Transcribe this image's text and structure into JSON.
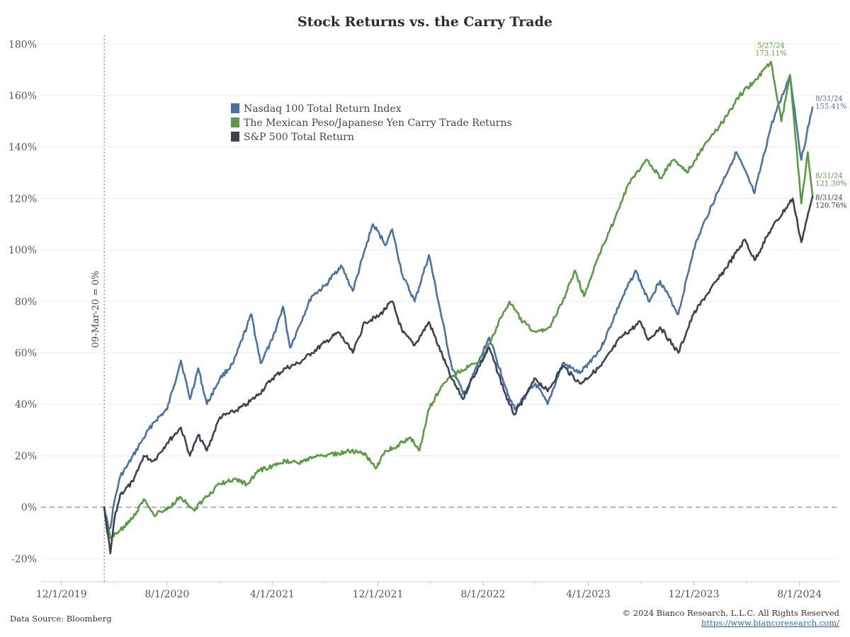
{
  "colors": {
    "nasdaq": "#4a72a3",
    "carry": "#5a9a44",
    "sp500": "#3c4250",
    "grid": "#ebebeb",
    "zero_line": "#9a9a9a",
    "link": "#2a6fb0"
  },
  "footer": {
    "source": "Data Source: Bloomberg",
    "copyright": "© 2024 Bianco Research, L.L.C. All Rights Reserved",
    "url": "https://www.biancoresearch.com/"
  },
  "reference_line": {
    "label": "09-Mar-20 = 0%"
  },
  "chart_data": {
    "type": "line",
    "title": "Stock Returns vs. the Carry Trade",
    "xlabel": "",
    "ylabel": "",
    "x_ticks": [
      "12/1/2019",
      "8/1/2020",
      "4/1/2021",
      "12/1/2021",
      "8/1/2022",
      "4/1/2023",
      "12/1/2023",
      "8/1/2024"
    ],
    "y_ticks": [
      "-20%",
      "0%",
      "20%",
      "40%",
      "60%",
      "80%",
      "100%",
      "120%",
      "140%",
      "160%",
      "180%"
    ],
    "xlim": [
      "2019-10-15",
      "2024-11-01"
    ],
    "ylim": [
      -29,
      182
    ],
    "grid": true,
    "legend_position": "upper-left-center",
    "series": [
      {
        "name": "Nasdaq 100 Total Return Index",
        "color_key": "nasdaq",
        "points": [
          [
            "2020-03-09",
            0
          ],
          [
            "2020-03-16",
            -10
          ],
          [
            "2020-03-23",
            -8
          ],
          [
            "2020-04-01",
            2
          ],
          [
            "2020-04-15",
            12
          ],
          [
            "2020-05-01",
            16
          ],
          [
            "2020-06-01",
            25
          ],
          [
            "2020-07-01",
            33
          ],
          [
            "2020-08-01",
            38
          ],
          [
            "2020-09-02",
            57
          ],
          [
            "2020-09-23",
            42
          ],
          [
            "2020-10-12",
            54
          ],
          [
            "2020-11-01",
            40
          ],
          [
            "2020-12-01",
            50
          ],
          [
            "2021-01-01",
            56
          ],
          [
            "2021-02-12",
            75
          ],
          [
            "2021-03-05",
            56
          ],
          [
            "2021-04-01",
            65
          ],
          [
            "2021-04-26",
            78
          ],
          [
            "2021-05-12",
            62
          ],
          [
            "2021-06-01",
            70
          ],
          [
            "2021-07-01",
            82
          ],
          [
            "2021-08-01",
            86
          ],
          [
            "2021-09-07",
            94
          ],
          [
            "2021-10-04",
            84
          ],
          [
            "2021-11-19",
            110
          ],
          [
            "2021-12-20",
            102
          ],
          [
            "2022-01-03",
            108
          ],
          [
            "2022-01-27",
            90
          ],
          [
            "2022-02-24",
            80
          ],
          [
            "2022-03-29",
            98
          ],
          [
            "2022-05-20",
            55
          ],
          [
            "2022-06-16",
            44
          ],
          [
            "2022-07-01",
            48
          ],
          [
            "2022-08-15",
            66
          ],
          [
            "2022-09-30",
            43
          ],
          [
            "2022-10-13",
            38
          ],
          [
            "2022-11-30",
            48
          ],
          [
            "2022-12-28",
            40
          ],
          [
            "2023-02-01",
            56
          ],
          [
            "2023-03-13",
            52
          ],
          [
            "2023-05-01",
            62
          ],
          [
            "2023-06-15",
            80
          ],
          [
            "2023-07-19",
            92
          ],
          [
            "2023-08-18",
            80
          ],
          [
            "2023-09-14",
            88
          ],
          [
            "2023-10-26",
            75
          ],
          [
            "2023-11-30",
            100
          ],
          [
            "2023-12-28",
            112
          ],
          [
            "2024-02-01",
            125
          ],
          [
            "2024-03-08",
            138
          ],
          [
            "2024-04-19",
            122
          ],
          [
            "2024-05-27",
            148
          ],
          [
            "2024-07-10",
            168
          ],
          [
            "2024-08-05",
            135
          ],
          [
            "2024-08-31",
            155.41
          ]
        ]
      },
      {
        "name": "The Mexican Peso/Japanese Yen Carry Trade Returns",
        "color_key": "carry",
        "points": [
          [
            "2020-03-09",
            0
          ],
          [
            "2020-03-23",
            -12
          ],
          [
            "2020-04-15",
            -9
          ],
          [
            "2020-05-15",
            -4
          ],
          [
            "2020-06-10",
            3
          ],
          [
            "2020-07-01",
            -3
          ],
          [
            "2020-08-01",
            -1
          ],
          [
            "2020-09-01",
            4
          ],
          [
            "2020-10-01",
            -1
          ],
          [
            "2020-11-01",
            4
          ],
          [
            "2020-12-01",
            9
          ],
          [
            "2021-01-01",
            11
          ],
          [
            "2021-02-01",
            9
          ],
          [
            "2021-03-01",
            14
          ],
          [
            "2021-04-01",
            16
          ],
          [
            "2021-05-01",
            18
          ],
          [
            "2021-06-01",
            17
          ],
          [
            "2021-07-01",
            19
          ],
          [
            "2021-08-01",
            20
          ],
          [
            "2021-09-01",
            21
          ],
          [
            "2021-10-01",
            22
          ],
          [
            "2021-11-01",
            21
          ],
          [
            "2021-11-26",
            15
          ],
          [
            "2021-12-20",
            22
          ],
          [
            "2022-01-15",
            24
          ],
          [
            "2022-02-15",
            27
          ],
          [
            "2022-03-07",
            22
          ],
          [
            "2022-03-28",
            38
          ],
          [
            "2022-05-01",
            48
          ],
          [
            "2022-06-01",
            52
          ],
          [
            "2022-07-01",
            55
          ],
          [
            "2022-08-01",
            58
          ],
          [
            "2022-09-01",
            70
          ],
          [
            "2022-10-01",
            80
          ],
          [
            "2022-11-01",
            72
          ],
          [
            "2022-12-01",
            68
          ],
          [
            "2023-01-01",
            70
          ],
          [
            "2023-02-01",
            80
          ],
          [
            "2023-03-01",
            92
          ],
          [
            "2023-03-22",
            82
          ],
          [
            "2023-05-01",
            100
          ],
          [
            "2023-06-01",
            112
          ],
          [
            "2023-07-01",
            125
          ],
          [
            "2023-08-15",
            135
          ],
          [
            "2023-09-15",
            128
          ],
          [
            "2023-10-15",
            135
          ],
          [
            "2023-11-15",
            130
          ],
          [
            "2023-12-15",
            138
          ],
          [
            "2024-01-15",
            145
          ],
          [
            "2024-02-15",
            152
          ],
          [
            "2024-03-15",
            160
          ],
          [
            "2024-04-15",
            165
          ],
          [
            "2024-05-27",
            173.11
          ],
          [
            "2024-06-20",
            150
          ],
          [
            "2024-07-10",
            168
          ],
          [
            "2024-08-05",
            118
          ],
          [
            "2024-08-20",
            138
          ],
          [
            "2024-08-31",
            121.3
          ]
        ]
      },
      {
        "name": "S&P 500 Total Return",
        "color_key": "sp500",
        "points": [
          [
            "2020-03-09",
            0
          ],
          [
            "2020-03-23",
            -18
          ],
          [
            "2020-04-01",
            -5
          ],
          [
            "2020-04-15",
            5
          ],
          [
            "2020-05-15",
            10
          ],
          [
            "2020-06-08",
            20
          ],
          [
            "2020-07-01",
            18
          ],
          [
            "2020-08-01",
            25
          ],
          [
            "2020-09-02",
            31
          ],
          [
            "2020-09-23",
            20
          ],
          [
            "2020-10-12",
            28
          ],
          [
            "2020-11-01",
            22
          ],
          [
            "2020-12-01",
            35
          ],
          [
            "2021-01-01",
            37
          ],
          [
            "2021-02-01",
            40
          ],
          [
            "2021-03-01",
            44
          ],
          [
            "2021-04-01",
            50
          ],
          [
            "2021-05-01",
            54
          ],
          [
            "2021-06-01",
            56
          ],
          [
            "2021-07-01",
            60
          ],
          [
            "2021-08-01",
            64
          ],
          [
            "2021-09-01",
            68
          ],
          [
            "2021-10-04",
            60
          ],
          [
            "2021-11-01",
            72
          ],
          [
            "2021-12-01",
            74
          ],
          [
            "2022-01-03",
            80
          ],
          [
            "2022-01-27",
            68
          ],
          [
            "2022-02-24",
            63
          ],
          [
            "2022-03-29",
            72
          ],
          [
            "2022-05-20",
            50
          ],
          [
            "2022-06-16",
            42
          ],
          [
            "2022-07-01",
            48
          ],
          [
            "2022-08-15",
            62
          ],
          [
            "2022-09-30",
            40
          ],
          [
            "2022-10-13",
            36
          ],
          [
            "2022-11-30",
            50
          ],
          [
            "2022-12-28",
            45
          ],
          [
            "2023-02-01",
            55
          ],
          [
            "2023-03-13",
            48
          ],
          [
            "2023-05-01",
            55
          ],
          [
            "2023-06-15",
            66
          ],
          [
            "2023-07-31",
            72
          ],
          [
            "2023-08-18",
            65
          ],
          [
            "2023-09-14",
            70
          ],
          [
            "2023-10-26",
            60
          ],
          [
            "2023-11-30",
            75
          ],
          [
            "2023-12-28",
            82
          ],
          [
            "2024-02-01",
            90
          ],
          [
            "2024-03-28",
            104
          ],
          [
            "2024-04-19",
            96
          ],
          [
            "2024-05-27",
            108
          ],
          [
            "2024-07-16",
            120
          ],
          [
            "2024-08-05",
            103
          ],
          [
            "2024-08-31",
            120.76
          ]
        ]
      }
    ],
    "annotations": [
      {
        "series_key": "carry",
        "date": "5/27/24",
        "value": "173.11%",
        "x": "2024-05-27",
        "y": 173.11
      },
      {
        "series_key": "nasdaq",
        "date": "8/31/24",
        "value": "155.41%",
        "x": "2024-08-31",
        "y": 155.41
      },
      {
        "series_key": "carry",
        "date": "8/31/24",
        "value": "121.30%",
        "x": "2024-08-31",
        "y": 121.3
      },
      {
        "series_key": "sp500",
        "date": "8/31/24",
        "value": "120.76%",
        "x": "2024-08-31",
        "y": 120.76
      }
    ],
    "reference_date": "2020-03-09",
    "baseline": 0
  }
}
